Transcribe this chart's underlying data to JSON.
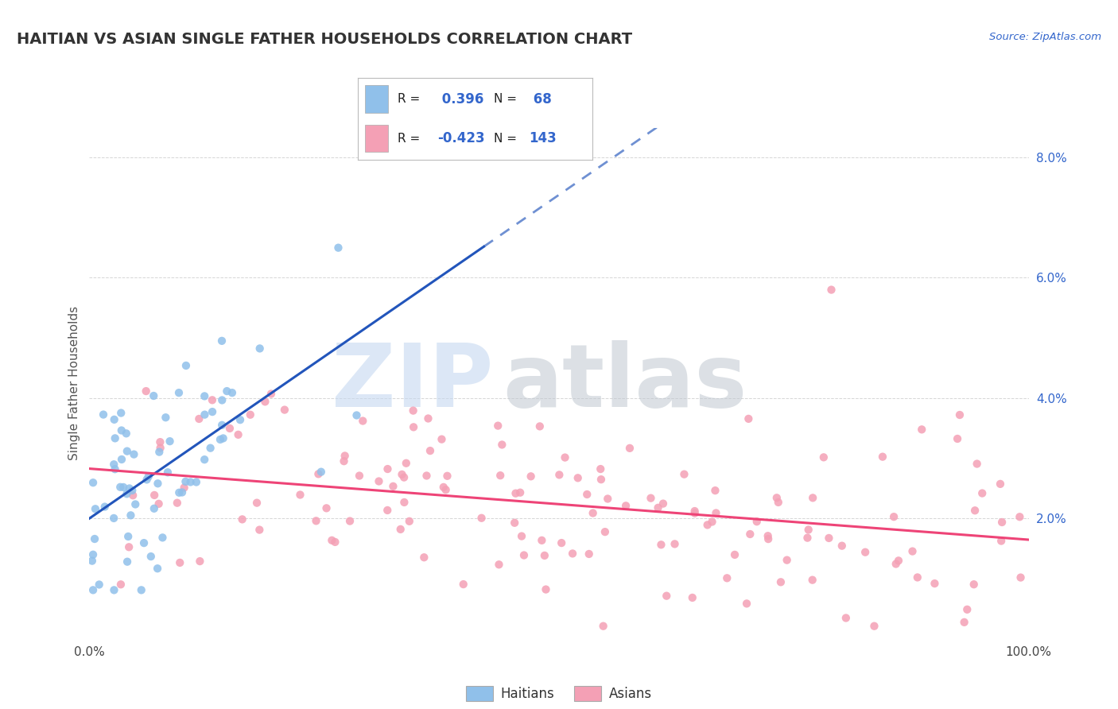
{
  "title": "HAITIAN VS ASIAN SINGLE FATHER HOUSEHOLDS CORRELATION CHART",
  "source": "Source: ZipAtlas.com",
  "ylabel": "Single Father Households",
  "xmin": 0.0,
  "xmax": 1.0,
  "ymin": 0.0,
  "ymax": 0.085,
  "ytick_vals": [
    0.0,
    0.02,
    0.04,
    0.06,
    0.08
  ],
  "ytick_labels": [
    "",
    "2.0%",
    "4.0%",
    "6.0%",
    "8.0%"
  ],
  "xtick_vals": [
    0.0,
    1.0
  ],
  "xtick_labels": [
    "0.0%",
    "100.0%"
  ],
  "haitian_color": "#90c0ea",
  "asian_color": "#f4a0b5",
  "haitian_line_color": "#2255bb",
  "asian_line_color": "#ee4477",
  "R_haitian": 0.396,
  "N_haitian": 68,
  "R_asian": -0.423,
  "N_asian": 143,
  "background_color": "#ffffff",
  "grid_color": "#cccccc",
  "title_color": "#333333",
  "label_color": "#3366cc",
  "title_fontsize": 14,
  "watermark_zip_color": "#c5d8f0",
  "watermark_atlas_color": "#c0c8d0"
}
